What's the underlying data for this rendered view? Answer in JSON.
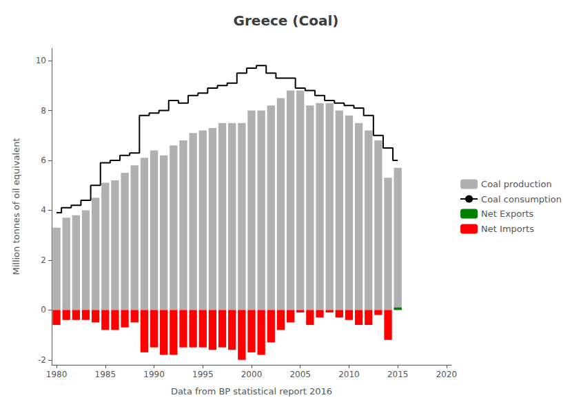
{
  "chart_data": {
    "type": "bar",
    "title": "Greece (Coal)",
    "xlabel": "Data from BP statistical report 2016",
    "ylabel": "Million tonnes of oil equivalent",
    "x": [
      1980,
      1981,
      1982,
      1983,
      1984,
      1985,
      1986,
      1987,
      1988,
      1989,
      1990,
      1991,
      1992,
      1993,
      1994,
      1995,
      1996,
      1997,
      1998,
      1999,
      2000,
      2001,
      2002,
      2003,
      2004,
      2005,
      2006,
      2007,
      2008,
      2009,
      2010,
      2011,
      2012,
      2013,
      2014,
      2015
    ],
    "series": [
      {
        "name": "Coal production",
        "type": "bar",
        "color": "#b0b0b0",
        "values": [
          3.3,
          3.7,
          3.8,
          4.0,
          4.5,
          5.1,
          5.2,
          5.5,
          5.8,
          6.1,
          6.4,
          6.2,
          6.6,
          6.8,
          7.1,
          7.2,
          7.3,
          7.5,
          7.5,
          7.5,
          8.0,
          8.0,
          8.2,
          8.5,
          8.8,
          8.8,
          8.2,
          8.3,
          8.3,
          8.0,
          7.8,
          7.5,
          7.2,
          6.8,
          5.3,
          5.7
        ]
      },
      {
        "name": "Coal consumption",
        "type": "line",
        "line_style": "step",
        "color": "#000000",
        "values": [
          3.9,
          4.1,
          4.2,
          4.4,
          5.0,
          5.9,
          6.0,
          6.2,
          6.3,
          7.8,
          7.9,
          8.0,
          8.4,
          8.3,
          8.6,
          8.7,
          8.9,
          9.0,
          9.1,
          9.5,
          9.7,
          9.8,
          9.5,
          9.3,
          9.3,
          8.9,
          8.8,
          8.6,
          8.4,
          8.3,
          8.2,
          8.1,
          7.8,
          7.0,
          6.5,
          6.0
        ]
      },
      {
        "name": "Net Exports",
        "type": "bar",
        "color": "#008000",
        "values": [
          null,
          null,
          null,
          null,
          null,
          null,
          null,
          null,
          null,
          null,
          null,
          null,
          null,
          null,
          null,
          null,
          null,
          null,
          null,
          null,
          null,
          null,
          null,
          null,
          null,
          null,
          null,
          null,
          null,
          null,
          null,
          null,
          null,
          null,
          null,
          0.1
        ]
      },
      {
        "name": "Net Imports",
        "type": "bar",
        "color": "#ff0000",
        "values": [
          -0.6,
          -0.4,
          -0.4,
          -0.4,
          -0.5,
          -0.8,
          -0.8,
          -0.7,
          -0.5,
          -1.7,
          -1.5,
          -1.8,
          -1.8,
          -1.5,
          -1.5,
          -1.5,
          -1.6,
          -1.5,
          -1.6,
          -2.0,
          -1.7,
          -1.8,
          -1.3,
          -0.8,
          -0.5,
          -0.1,
          -0.6,
          -0.3,
          -0.1,
          -0.3,
          -0.4,
          -0.6,
          -0.6,
          -0.2,
          -1.2,
          null
        ]
      }
    ],
    "xlim": [
      1979.5,
      2020.5
    ],
    "xticks": [
      1980,
      1985,
      1990,
      1995,
      2000,
      2005,
      2010,
      2015,
      2020
    ],
    "ylim": [
      -2.2,
      10.5
    ],
    "yticks": [
      -2,
      0,
      2,
      4,
      6,
      8,
      10
    ],
    "grid": false,
    "legend": "right"
  }
}
